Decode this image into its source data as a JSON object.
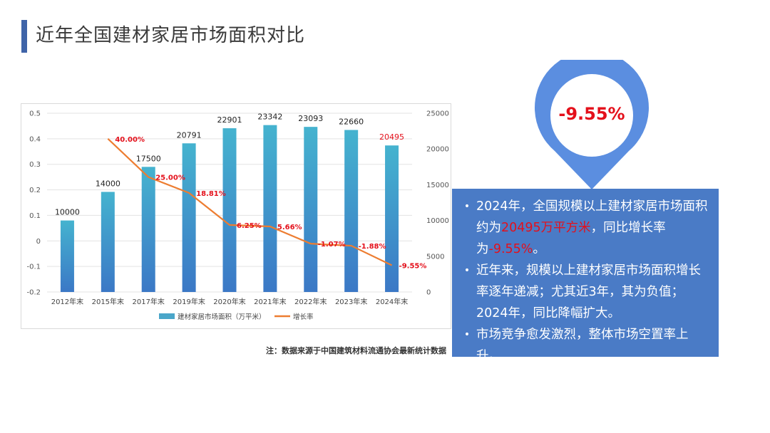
{
  "page": {
    "title": "近年全国建材家居市场面积对比"
  },
  "chart_data": {
    "type": "bar",
    "categories": [
      "2012年末",
      "2015年末",
      "2017年末",
      "2019年末",
      "2020年末",
      "2021年末",
      "2022年末",
      "2023年末",
      "2024年末"
    ],
    "series": [
      {
        "name": "建材家居市场面积（万平米）",
        "type": "bar",
        "axis": "right",
        "values": [
          10000,
          14000,
          17500,
          20791,
          22901,
          23342,
          23093,
          22660,
          20495
        ],
        "labels": [
          "10000",
          "14000",
          "17500",
          "20791",
          "22901",
          "23342",
          "23093",
          "22660",
          "20495"
        ],
        "color": "#4aa6c9"
      },
      {
        "name": "增长率",
        "type": "line",
        "axis": "left",
        "values": [
          null,
          0.4,
          0.25,
          0.1881,
          0.0625,
          0.0566,
          -0.0107,
          -0.0188,
          -0.0955
        ],
        "labels": [
          "",
          "40.00%",
          "25.00%",
          "18.81%",
          "6.25%",
          "5.66%",
          "-1.07%",
          "-1.88%",
          "-9.55%"
        ],
        "color": "#ed7d31"
      }
    ],
    "left_axis": {
      "range": [
        -0.2,
        0.5
      ],
      "ticks": [
        "0.5",
        "0.4",
        "0.3",
        "0.2",
        "0.1",
        "0",
        "-0.1",
        "-0.2"
      ]
    },
    "right_axis": {
      "range": [
        0,
        25000
      ],
      "ticks": [
        "25000",
        "20000",
        "15000",
        "10000",
        "5000",
        "0"
      ]
    },
    "legend_position": "bottom",
    "highlight_color": "#e4101b"
  },
  "note": "注：数据来源于中国建筑材料流通协会最新统计数据",
  "callout": {
    "value": "-9.55%",
    "pin_color": "#5b8ee0"
  },
  "info": {
    "bullets": [
      {
        "parts": [
          {
            "text": "2024年，全国规模以上建材家居市场面积约为",
            "hl": false
          },
          {
            "text": "20495万平方米",
            "hl": true
          },
          {
            "text": "，同比增长率为",
            "hl": false
          },
          {
            "text": "-9.55%",
            "hl": true
          },
          {
            "text": "。",
            "hl": false
          }
        ]
      },
      {
        "parts": [
          {
            "text": "近年来，规模以上建材家居市场面积增长率逐年递减；尤其近3年，其为负值；2024年，同比降幅扩大。",
            "hl": false
          }
        ]
      },
      {
        "parts": [
          {
            "text": "市场竞争愈发激烈，整体市场空置率上升。",
            "hl": false
          }
        ]
      }
    ]
  }
}
